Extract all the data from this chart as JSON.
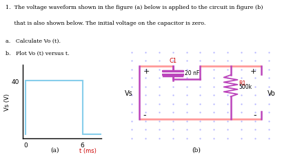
{
  "title_text": "1.  The voltage waveform shown in the figure (a) below is applied to the circuit in figure (b)",
  "title_line2": "     that is also shown below. The initial voltage on the capacitor is zero.",
  "sub_a": "a.   Calculate Vo (t).",
  "sub_b": "b.   Plot Vo (t) versus t.",
  "waveform_label_y": "Vs (V)",
  "waveform_label_x": "t (ms)",
  "waveform_xlabel_val": "(a)",
  "waveform_ytick": 40,
  "waveform_xtick": 6,
  "waveform_color": "#87CEEB",
  "circuit_label": "(b)",
  "circuit_color_h": "#FF9999",
  "circuit_color_v": "#BB44BB",
  "cap_label": "C1",
  "cap_value": "20 nF",
  "res_label": "R1",
  "res_value": "500k",
  "vs_label": "Vs",
  "vo_label": "Vo",
  "bg_color": "#FFFFFF",
  "text_color_red": "#CC0000",
  "text_color_black": "#000000",
  "dot_color": "#AAAAFF"
}
